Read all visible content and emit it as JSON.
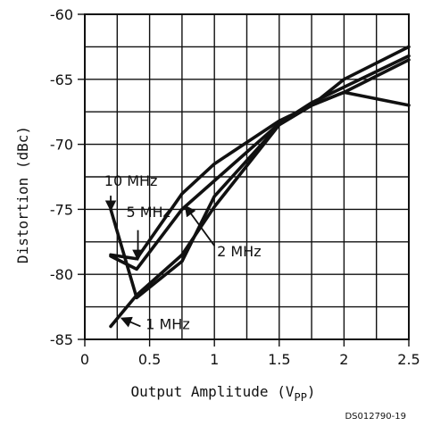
{
  "chart_data": {
    "type": "line",
    "xlabel": "Output Amplitude (V",
    "xlabel_subscript": "PP",
    "xlabel_suffix": ")",
    "ylabel": "Distortion (dBc)",
    "xlim": [
      0,
      2.5
    ],
    "ylim": [
      -85,
      -60
    ],
    "xticks": [
      {
        "value": 0,
        "label": "0"
      },
      {
        "value": 0.5,
        "label": "0.5"
      },
      {
        "value": 1,
        "label": "1"
      },
      {
        "value": 1.5,
        "label": "1.5"
      },
      {
        "value": 2,
        "label": "2"
      },
      {
        "value": 2.5,
        "label": "2.5"
      }
    ],
    "yticks": [
      {
        "value": -60,
        "label": "-60"
      },
      {
        "value": -65,
        "label": "-65"
      },
      {
        "value": -70,
        "label": "-70"
      },
      {
        "value": -75,
        "label": "-75"
      },
      {
        "value": -80,
        "label": "-80"
      },
      {
        "value": -85,
        "label": "-85"
      }
    ],
    "grid": true,
    "x_grid_step": 0.25,
    "y_grid_step": 2.5,
    "series": [
      {
        "name": "10 MHz",
        "x": [
          0.2,
          0.4,
          0.75,
          1.0,
          1.5,
          1.75,
          2.0,
          2.5
        ],
        "y": [
          -75.0,
          -81.8,
          -79.0,
          -74.0,
          -68.5,
          -67.0,
          -66.0,
          -67.0
        ]
      },
      {
        "name": "5 MHz",
        "x": [
          0.2,
          0.4,
          0.75,
          1.0,
          1.5,
          1.75,
          2.0,
          2.5
        ],
        "y": [
          -78.5,
          -78.8,
          -73.8,
          -71.5,
          -68.2,
          -67.0,
          -65.0,
          -62.5
        ]
      },
      {
        "name": "2 MHz",
        "x": [
          0.2,
          0.4,
          0.75,
          1.0,
          1.5,
          1.75,
          2.0,
          2.5
        ],
        "y": [
          -78.6,
          -79.6,
          -75.0,
          -72.8,
          -68.4,
          -66.8,
          -65.6,
          -63.2
        ]
      },
      {
        "name": "1 MHz",
        "x": [
          0.2,
          0.4,
          0.75,
          1.0,
          1.5,
          1.75,
          2.0,
          2.5
        ],
        "y": [
          -84.0,
          -81.6,
          -78.5,
          -74.8,
          -68.5,
          -67.0,
          -66.0,
          -63.5
        ]
      }
    ],
    "annotations": [
      {
        "series": "10 MHz",
        "text": "10 MHz",
        "point": [
          0.2,
          -75.0
        ]
      },
      {
        "series": "5 MHz",
        "text": "5 MHz",
        "point": [
          0.41,
          -78.8
        ]
      },
      {
        "series": "2 MHz",
        "text": "2 MHz",
        "point": [
          0.78,
          -74.8
        ]
      },
      {
        "series": "1 MHz",
        "text": "1 MHz",
        "point": [
          0.29,
          -83.4
        ]
      }
    ],
    "line_color": "#111111",
    "grid_color": "#111111"
  },
  "figure_id": "DS012790-19"
}
